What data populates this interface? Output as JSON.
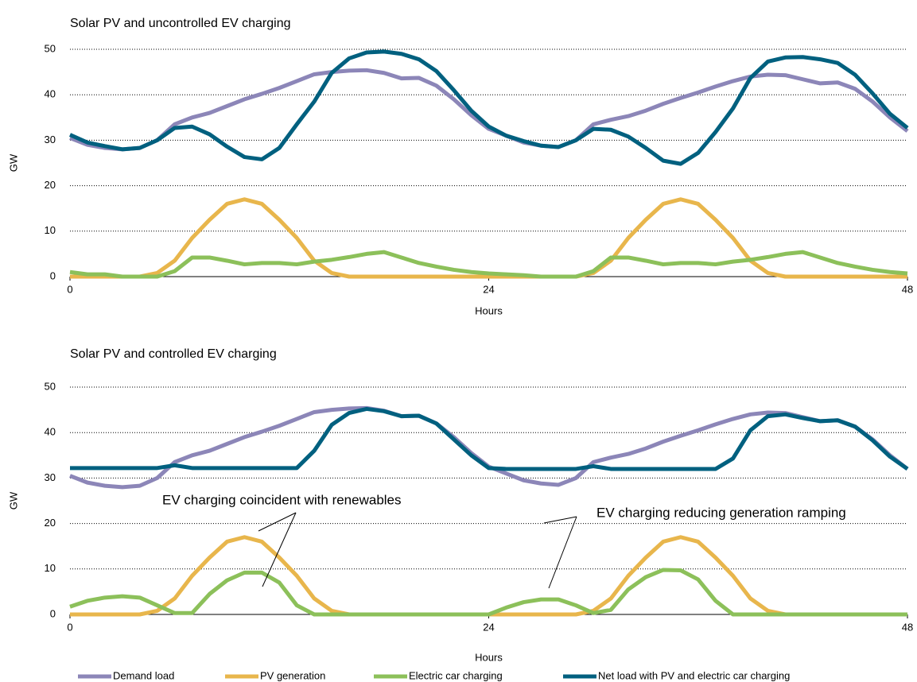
{
  "chart_data": [
    {
      "type": "line",
      "title": "Solar PV and uncontrolled EV charging",
      "ylabel": "GW",
      "xlabel": "Hours",
      "x": [
        0,
        1,
        2,
        3,
        4,
        5,
        6,
        7,
        8,
        9,
        10,
        11,
        12,
        13,
        14,
        15,
        16,
        17,
        18,
        19,
        20,
        21,
        22,
        23,
        24,
        25,
        26,
        27,
        28,
        29,
        30,
        31,
        32,
        33,
        34,
        35,
        36,
        37,
        38,
        39,
        40,
        41,
        42,
        43,
        44,
        45,
        46,
        47,
        48
      ],
      "xlim": [
        0,
        48
      ],
      "xticks": [
        0,
        24,
        48
      ],
      "ylim": [
        0,
        50
      ],
      "yticks": [
        0,
        10,
        20,
        30,
        40,
        50
      ],
      "grid": true,
      "series": [
        {
          "color": "#8c86b8",
          "values": [
            30.5,
            29,
            28.3,
            28,
            28.3,
            30,
            33.5,
            35,
            36,
            37.5,
            39,
            40.2,
            41.5,
            43,
            44.5,
            45,
            45.3,
            45.4,
            44.8,
            43.6,
            43.7,
            42,
            39,
            35.5,
            32.5,
            31,
            29.5,
            28.8,
            28.5,
            30,
            33.5,
            34.5,
            35.3,
            36.5,
            38,
            39.3,
            40.5,
            41.8,
            43,
            44,
            44.4,
            44.3,
            43.4,
            42.5,
            42.7,
            41.3,
            38.5,
            35,
            32
          ]
        },
        {
          "color": "#e8b64c",
          "values": [
            0,
            0,
            0,
            0,
            0,
            0.8,
            3.5,
            8.5,
            12.5,
            16,
            17,
            16,
            12.5,
            8.5,
            3.5,
            0.8,
            0,
            0,
            0,
            0,
            0,
            0,
            0,
            0,
            0,
            0,
            0,
            0,
            0,
            0,
            0.8,
            3.5,
            8.5,
            12.5,
            16,
            17,
            16,
            12.5,
            8.5,
            3.5,
            0.8,
            0,
            0,
            0,
            0,
            0,
            0,
            0,
            0
          ]
        },
        {
          "color": "#8cc05a",
          "values": [
            1,
            0.5,
            0.5,
            0,
            0,
            0,
            1.2,
            4.2,
            4.2,
            3.5,
            2.7,
            3,
            3,
            2.7,
            3.3,
            3.7,
            4.3,
            5,
            5.4,
            4.2,
            3,
            2.2,
            1.5,
            1,
            0.7,
            0.5,
            0.3,
            0,
            0,
            0,
            1.2,
            4.2,
            4.2,
            3.5,
            2.7,
            3,
            3,
            2.7,
            3.3,
            3.7,
            4.3,
            5,
            5.4,
            4.2,
            3,
            2.2,
            1.5,
            1,
            0.7
          ]
        },
        {
          "color": "#00607f",
          "values": [
            31.2,
            29.5,
            28.7,
            28,
            28.3,
            30,
            32.7,
            33,
            31.3,
            28.6,
            26.3,
            25.8,
            28.3,
            33.5,
            38.5,
            44.8,
            48,
            49.3,
            49.5,
            49,
            47.8,
            45.2,
            41,
            36.5,
            33,
            31,
            29.8,
            28.8,
            28.5,
            30,
            32.5,
            32.3,
            30.8,
            28.3,
            25.5,
            24.8,
            27.2,
            31.8,
            37,
            43.7,
            47.3,
            48.2,
            48.3,
            47.8,
            47,
            44.4,
            40.3,
            35.8,
            32.7
          ]
        }
      ]
    },
    {
      "type": "line",
      "title": "Solar PV and controlled EV charging",
      "ylabel": "GW",
      "xlabel": "Hours",
      "x": [
        0,
        1,
        2,
        3,
        4,
        5,
        6,
        7,
        8,
        9,
        10,
        11,
        12,
        13,
        14,
        15,
        16,
        17,
        18,
        19,
        20,
        21,
        22,
        23,
        24,
        25,
        26,
        27,
        28,
        29,
        30,
        31,
        32,
        33,
        34,
        35,
        36,
        37,
        38,
        39,
        40,
        41,
        42,
        43,
        44,
        45,
        46,
        47,
        48
      ],
      "xlim": [
        0,
        48
      ],
      "xticks": [
        0,
        24,
        48
      ],
      "ylim": [
        0,
        50
      ],
      "yticks": [
        0,
        10,
        20,
        30,
        40,
        50
      ],
      "grid": true,
      "annotations": [
        "EV charging coincident with renewables",
        "EV charging reducing generation ramping"
      ],
      "series": [
        {
          "name": "Demand load",
          "color": "#8c86b8",
          "values": [
            30.5,
            29,
            28.3,
            28,
            28.3,
            30,
            33.5,
            35,
            36,
            37.5,
            39,
            40.2,
            41.5,
            43,
            44.5,
            45,
            45.3,
            45.4,
            44.8,
            43.6,
            43.7,
            42,
            39,
            35.5,
            32.5,
            31,
            29.5,
            28.8,
            28.5,
            30,
            33.5,
            34.5,
            35.3,
            36.5,
            38,
            39.3,
            40.5,
            41.8,
            43,
            44,
            44.4,
            44.3,
            43.4,
            42.5,
            42.7,
            41.3,
            38.5,
            35,
            32
          ]
        },
        {
          "name": "PV generation",
          "color": "#e8b64c",
          "values": [
            0,
            0,
            0,
            0,
            0,
            0.8,
            3.5,
            8.5,
            12.5,
            16,
            17,
            16,
            12.5,
            8.5,
            3.5,
            0.8,
            0,
            0,
            0,
            0,
            0,
            0,
            0,
            0,
            0,
            0,
            0,
            0,
            0,
            0,
            0.8,
            3.5,
            8.5,
            12.5,
            16,
            17,
            16,
            12.5,
            8.5,
            3.5,
            0.8,
            0,
            0,
            0,
            0,
            0,
            0,
            0,
            0
          ]
        },
        {
          "name": "Electric car charging",
          "color": "#8cc05a",
          "values": [
            1.7,
            3,
            3.7,
            4,
            3.7,
            2,
            0.3,
            0.3,
            4.5,
            7.5,
            9.2,
            9.2,
            7,
            2,
            0,
            0,
            0,
            0,
            0,
            0,
            0,
            0,
            0,
            0,
            0,
            1.5,
            2.7,
            3.3,
            3.3,
            2,
            0.3,
            1,
            5.5,
            8.2,
            9.8,
            9.7,
            7.7,
            3,
            0,
            0,
            0,
            0,
            0,
            0,
            0,
            0,
            0,
            0,
            0
          ]
        },
        {
          "name": "Net load with PV and electric car charging",
          "color": "#00607f",
          "values": [
            32.2,
            32.2,
            32.2,
            32.2,
            32.2,
            32.2,
            32.8,
            32.2,
            32.2,
            32.2,
            32.2,
            32.2,
            32.2,
            32.2,
            36,
            41.7,
            44.3,
            45.2,
            44.7,
            43.6,
            43.7,
            42,
            38.5,
            35,
            32.2,
            32,
            32,
            32,
            32,
            32,
            32.6,
            32,
            32,
            32,
            32,
            32,
            32,
            32,
            34.3,
            40.5,
            43.6,
            44,
            43.2,
            42.5,
            42.7,
            41.3,
            38.3,
            34.7,
            32
          ]
        }
      ]
    }
  ]
}
